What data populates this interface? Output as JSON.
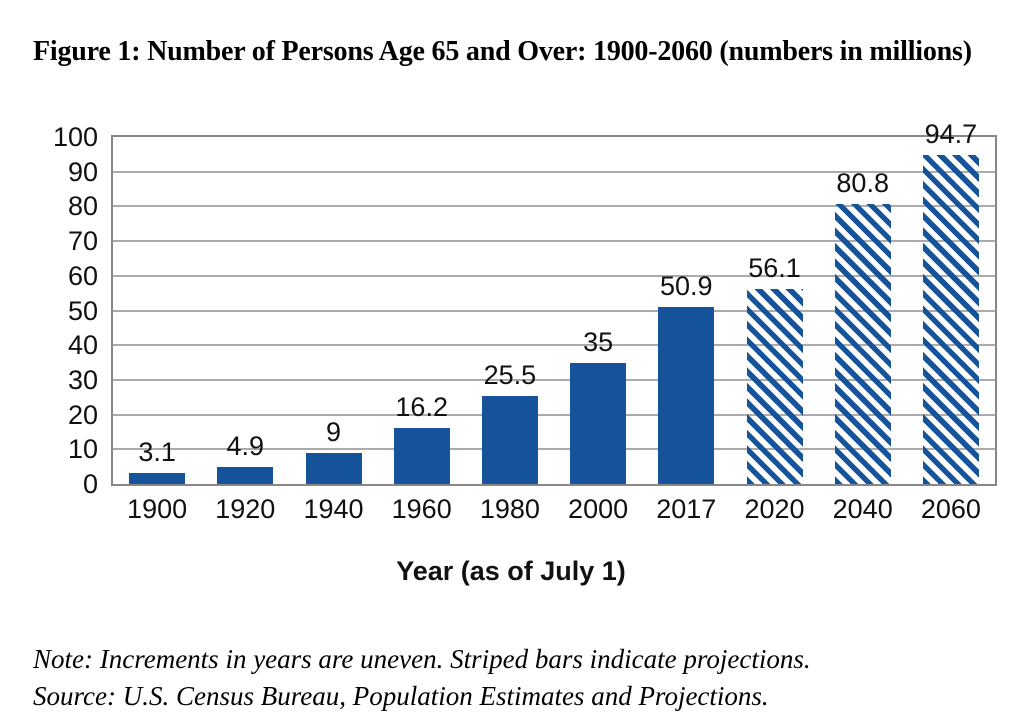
{
  "figure": {
    "title": "Figure 1: Number of Persons Age 65 and Over: 1900-2060 (numbers in millions)",
    "note": "Note: Increments in years are uneven. Striped bars indicate projections.",
    "source": "Source: U.S. Census Bureau, Population Estimates and Projections."
  },
  "chart_data": {
    "type": "bar",
    "title": "Figure 1: Number of Persons Age 65 and Over: 1900-2060 (numbers in millions)",
    "categories": [
      "1900",
      "1920",
      "1940",
      "1960",
      "1980",
      "2000",
      "2017",
      "2020",
      "2040",
      "2060"
    ],
    "values": [
      3.1,
      4.9,
      9,
      16.2,
      25.5,
      35,
      50.9,
      56.1,
      80.8,
      94.7
    ],
    "value_labels": [
      "3.1",
      "4.9",
      "9",
      "16.2",
      "25.5",
      "35",
      "50.9",
      "56.1",
      "80.8",
      "94.7"
    ],
    "projected": [
      false,
      false,
      false,
      false,
      false,
      false,
      false,
      true,
      true,
      true
    ],
    "xlabel": "Year (as of July 1)",
    "ylabel": "",
    "ylim": [
      0,
      100
    ],
    "yticks": [
      0,
      10,
      20,
      30,
      40,
      50,
      60,
      70,
      80,
      90,
      100
    ],
    "grid": true,
    "legend": "none",
    "bar_color": "#15549A",
    "gridline_color": "#ABABAB",
    "axis_border_color": "#878787",
    "annotations": {
      "note": "Note: Increments in years are uneven. Striped bars indicate projections.",
      "source": "Source: U.S. Census Bureau, Population Estimates and Projections."
    }
  }
}
